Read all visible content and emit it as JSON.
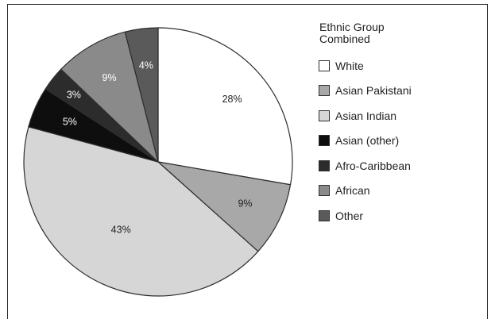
{
  "chart_data": {
    "type": "pie",
    "legend_title": [
      "Ethnic Group",
      "Combined"
    ],
    "legend_position": "right",
    "slices": [
      {
        "label": "White",
        "value": 28,
        "display": "28%",
        "color": "#ffffff",
        "text_color": "#222222"
      },
      {
        "label": "Asian Pakistani",
        "value": 9,
        "display": "9%",
        "color": "#a8a8a8",
        "text_color": "#222222"
      },
      {
        "label": "Asian Indian",
        "value": 43,
        "display": "43%",
        "color": "#d6d6d6",
        "text_color": "#222222"
      },
      {
        "label": "Asian (other)",
        "value": 5,
        "display": "5%",
        "color": "#0e0e0e",
        "text_color": "#ffffff"
      },
      {
        "label": "Afro-Caribbean",
        "value": 3,
        "display": "3%",
        "color": "#2c2c2c",
        "text_color": "#ffffff"
      },
      {
        "label": "African",
        "value": 9,
        "display": "9%",
        "color": "#8a8a8a",
        "text_color": "#ffffff"
      },
      {
        "label": "Other",
        "value": 4,
        "display": "4%",
        "color": "#5a5a5a",
        "text_color": "#ffffff"
      }
    ]
  }
}
